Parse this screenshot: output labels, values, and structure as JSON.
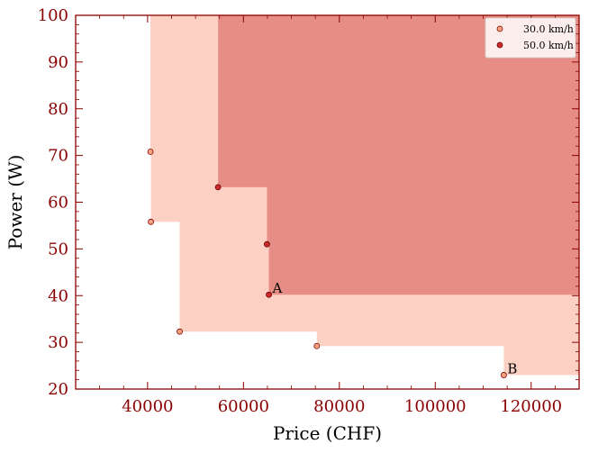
{
  "chart_data": {
    "type": "scatter",
    "title": "",
    "xlabel": "Price (CHF)",
    "ylabel": "Power (W)",
    "xlim": [
      25000,
      130000
    ],
    "ylim": [
      20,
      100
    ],
    "xticks": [
      40000,
      60000,
      80000,
      100000,
      120000
    ],
    "yticks": [
      20,
      30,
      40,
      50,
      60,
      70,
      80,
      90,
      100
    ],
    "grid": false,
    "legend_position": "top-right",
    "series": [
      {
        "name": "30.0 km/h",
        "color": "#f4a582",
        "edge_color": "#8b0000",
        "region_color": "#fdd0c4",
        "points": [
          {
            "x": 40600,
            "y": 70.8
          },
          {
            "x": 40700,
            "y": 55.8
          },
          {
            "x": 46700,
            "y": 32.3
          },
          {
            "x": 75300,
            "y": 29.2
          },
          {
            "x": 114300,
            "y": 23.0
          }
        ]
      },
      {
        "name": "50.0 km/h",
        "color": "#c92a2a",
        "edge_color": "#6b0000",
        "region_color": "#e58a82",
        "points": [
          {
            "x": 54700,
            "y": 63.2
          },
          {
            "x": 64900,
            "y": 51.0
          },
          {
            "x": 65300,
            "y": 40.2
          }
        ]
      }
    ],
    "annotations": [
      {
        "text": "A",
        "x": 65300,
        "y": 40.2
      },
      {
        "text": "B",
        "x": 114300,
        "y": 23.0
      }
    ]
  }
}
